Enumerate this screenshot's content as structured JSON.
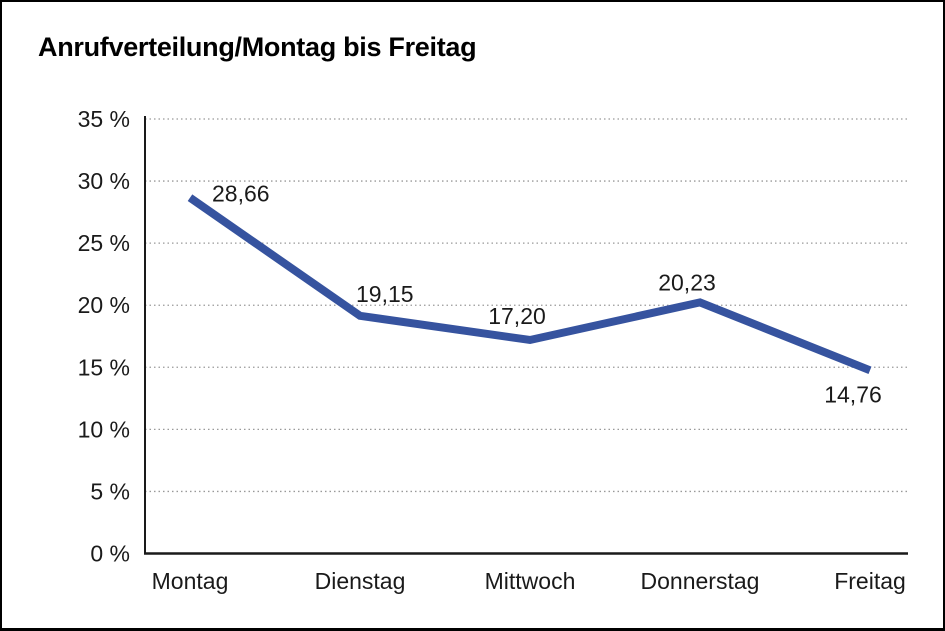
{
  "window": {
    "background": "#ffffff",
    "border_color": "#000000"
  },
  "header": {
    "title": "Anrufverteilung/Montag bis Freitag"
  },
  "chart_data": {
    "type": "line",
    "title": "Anrufverteilung/Montag bis Freitag",
    "categories": [
      "Montag",
      "Dienstag",
      "Mittwoch",
      "Donnerstag",
      "Freitag"
    ],
    "series": [
      {
        "name": "Anrufverteilung",
        "values": [
          28.66,
          19.15,
          17.2,
          20.23,
          14.76
        ],
        "value_labels": [
          "28,66",
          "19,15",
          "17,20",
          "20,23",
          "14,76"
        ],
        "color": "#36539F"
      }
    ],
    "xlabel": "",
    "ylabel": "",
    "ylim": [
      0,
      35
    ],
    "ytick_values": [
      0,
      5,
      10,
      15,
      20,
      25,
      30,
      35
    ],
    "ytick_labels": [
      "0 %",
      "5 %",
      "10 %",
      "15 %",
      "20 %",
      "25 %",
      "30 %",
      "35 %"
    ],
    "grid": "horizontal dotted",
    "legend": "none",
    "value_label_positions": [
      "right",
      "above-right",
      "above",
      "above",
      "below"
    ],
    "colors": {
      "line": "#36539F",
      "grid": "#999999",
      "axis": "#1a1a1a",
      "text": "#1a1a1a"
    }
  }
}
